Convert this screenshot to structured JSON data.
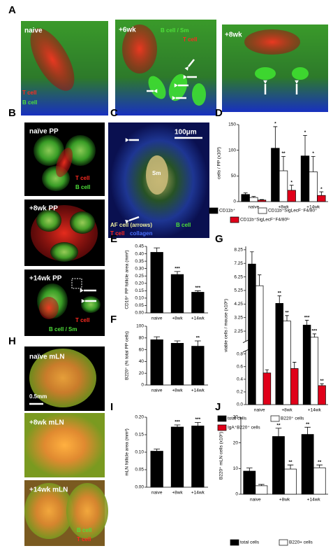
{
  "panel_labels": [
    "A",
    "B",
    "C",
    "D",
    "E",
    "F",
    "G",
    "H",
    "I",
    "J"
  ],
  "images": [
    {
      "labels": [
        "naive",
        "T cell",
        "B cell"
      ]
    },
    {
      "labels": [
        "+6wk",
        "B cell / Sm",
        "T cell"
      ]
    },
    {
      "labels": [
        "+8wk"
      ]
    },
    {
      "labels": [
        "naïve PP",
        "T cell",
        "B cell"
      ]
    },
    {
      "labels": [
        "+8wk PP"
      ]
    },
    {
      "labels": [
        "+14wk PP",
        "T cell",
        "B cell / Sm"
      ]
    },
    {
      "labels": [
        "100μm",
        "Sm",
        "AF cell (arrows)",
        "B cell",
        "T cell",
        "collagen"
      ]
    },
    {
      "labels": [
        "naïve mLN",
        "0.5mm"
      ]
    },
    {
      "labels": [
        "+8wk mLN"
      ]
    },
    {
      "labels": [
        "+14wk mLN",
        "B cell",
        "T cell"
      ]
    }
  ],
  "chart_data": [
    {
      "type": "bar",
      "ylabel": "cells / PP (x10³)",
      "categories": [
        "naive",
        "+8wk",
        "+14wk"
      ],
      "ylim": [
        0,
        150
      ],
      "yticks": [
        0,
        50,
        100,
        150
      ],
      "series": [
        {
          "name": "CD11b⁺",
          "color": "#000000",
          "values": [
            14,
            104,
            89
          ],
          "errors": [
            3,
            42,
            40
          ],
          "stars": [
            null,
            "*",
            "*"
          ]
        },
        {
          "name": "CD11b⁺SigLecF⁻F4/80⁺",
          "color": "#ffffff",
          "values": [
            8,
            60,
            58
          ],
          "errors": [
            2,
            28,
            30
          ],
          "stars": [
            null,
            "**",
            "*"
          ]
        },
        {
          "name": "CD11b⁺SigLecF⁺F4/80ˡᵒ",
          "color": "#e0001a",
          "values": [
            3,
            22,
            12
          ],
          "errors": [
            1,
            10,
            7
          ],
          "stars": [
            null,
            "*",
            "*"
          ]
        }
      ]
    },
    {
      "type": "bar",
      "ylabel": "CD19⁺ PP follicle area (mm²)",
      "categories": [
        "naive",
        "+8wk",
        "+14wk"
      ],
      "ylim": [
        0,
        0.45
      ],
      "yticks": [
        {
          "value": 0,
          "label": "0.00"
        },
        0.05,
        {
          "value": 0.1,
          "label": "0.10"
        },
        0.15,
        {
          "value": 0.2,
          "label": "0.20"
        },
        0.25,
        {
          "value": 0.3,
          "label": "0.30"
        },
        0.35,
        {
          "value": 0.4,
          "label": "0.40"
        },
        0.45
      ],
      "color": "#000000",
      "values": [
        0.41,
        0.26,
        0.14
      ],
      "errors": [
        0.03,
        0.02,
        0.01
      ],
      "stars": [
        null,
        "***",
        "***"
      ]
    },
    {
      "type": "bar",
      "ylabel": "B220⁺ (% total PP cells)",
      "categories": [
        "naive",
        "+8wk",
        "+14wk"
      ],
      "ylim": [
        0,
        100
      ],
      "yticks": [
        0,
        20,
        40,
        60,
        80,
        100
      ],
      "color": "#000000",
      "values": [
        77,
        71,
        66
      ],
      "errors": [
        5,
        4,
        9
      ],
      "stars": [
        null,
        null,
        "**"
      ]
    },
    {
      "type": "bar",
      "ylabel": "viable cells / mouse (x10⁶)",
      "categories": [
        "naive",
        "+8wk",
        "+14wk"
      ],
      "segments": [
        {
          "ylim": [
            0,
            0.85
          ],
          "yticks": [
            {
              "value": 0,
              "label": "0.0"
            },
            0.2,
            0.4,
            0.6,
            0.8
          ]
        },
        {
          "ylim": [
            1.5,
            8.5
          ],
          "yticks": [
            2.25,
            3.25,
            4.25,
            5.25,
            6.25,
            7.25,
            8.25
          ]
        }
      ],
      "series": [
        {
          "name": "total cells",
          "color": "#000000",
          "values": [
            7.2,
            4.3,
            2.7
          ],
          "errors": [
            0.9,
            0.55,
            0.35
          ],
          "stars": [
            null,
            "**",
            "***"
          ]
        },
        {
          "name": "B220⁺ cells",
          "color": "#ffffff",
          "values": [
            5.6,
            3.0,
            1.8
          ],
          "errors": [
            0.8,
            0.4,
            0.25
          ],
          "stars": [
            null,
            "**",
            "***"
          ]
        },
        {
          "name": "IgA⁺B220⁺ cells",
          "color": "#e0001a",
          "values": [
            0.5,
            0.57,
            0.3
          ],
          "errors": [
            0.05,
            0.1,
            0.03
          ],
          "stars": [
            null,
            null,
            "**"
          ]
        }
      ]
    },
    {
      "type": "bar",
      "ylabel": "mLN follicle area (mm²)",
      "categories": [
        "naive",
        "+8wk",
        "+14wk"
      ],
      "ylim": [
        0,
        0.2
      ],
      "yticks": [
        {
          "value": 0,
          "label": "0.00"
        },
        0.05,
        {
          "value": 0.1,
          "label": "0.10"
        },
        0.15,
        {
          "value": 0.2,
          "label": "0.20"
        }
      ],
      "color": "#000000",
      "values": [
        0.103,
        0.172,
        0.175
      ],
      "errors": [
        0.006,
        0.006,
        0.01
      ],
      "stars": [
        null,
        "***",
        "***"
      ]
    },
    {
      "type": "bar",
      "ylabel": "B220⁺ mLN cells (x10⁶)",
      "categories": [
        "naive",
        "+8wk",
        "+14wk"
      ],
      "ylim": [
        0,
        30
      ],
      "yticks": [
        0,
        10,
        20,
        30
      ],
      "series": [
        {
          "name": "total cells",
          "color": "#000000",
          "values": [
            9,
            22.5,
            23.3
          ],
          "errors": [
            1.2,
            3.2,
            2.8
          ],
          "stars": [
            null,
            "**",
            "**"
          ]
        },
        {
          "name": "B220+ cells",
          "color": "#ffffff",
          "values": [
            3.3,
            9.8,
            10.3
          ],
          "errors": [
            0.5,
            1.6,
            1.1
          ],
          "stars": [
            null,
            "**",
            "**"
          ]
        }
      ]
    }
  ]
}
